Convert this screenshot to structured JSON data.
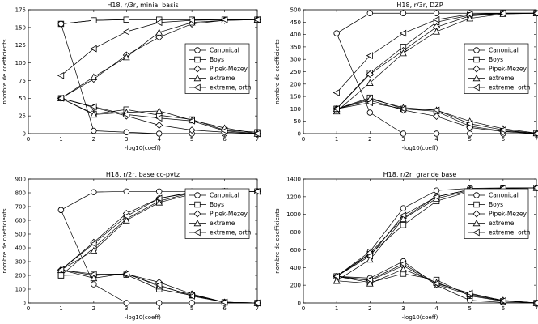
{
  "chart_data": [
    {
      "type": "line",
      "title": "H18, r/3r, minial basis",
      "xlabel": "-log10(coeff)",
      "ylabel": "nombre de coefficients",
      "xlim": [
        0,
        7
      ],
      "ylim": [
        0,
        175
      ],
      "xticks": [
        0,
        1,
        2,
        3,
        4,
        5,
        6,
        7
      ],
      "yticks": [
        0,
        25,
        50,
        75,
        100,
        125,
        150,
        175
      ],
      "x": [
        1,
        2,
        3,
        4,
        5,
        6,
        7
      ],
      "series": [
        {
          "group": "growth",
          "name": "Canonical",
          "marker": "circle",
          "values": [
            155,
            160,
            161,
            161,
            161,
            161,
            161
          ]
        },
        {
          "group": "growth",
          "name": "Boys",
          "marker": "square",
          "values": [
            155,
            160,
            161,
            161,
            161,
            161,
            161
          ]
        },
        {
          "group": "growth",
          "name": "Pipek-Mezey",
          "marker": "diamond",
          "values": [
            50,
            77,
            111,
            136,
            155,
            160,
            161
          ]
        },
        {
          "group": "growth",
          "name": "extreme",
          "marker": "triangle-up",
          "values": [
            50,
            80,
            108,
            143,
            157,
            160,
            161
          ]
        },
        {
          "group": "growth",
          "name": "extreme, orth",
          "marker": "triangle-left",
          "values": [
            82,
            120,
            144,
            157,
            160,
            161,
            161
          ]
        },
        {
          "group": "decay",
          "name": "Canonical",
          "marker": "circle",
          "values": [
            155,
            4,
            2,
            0,
            0,
            0,
            0
          ]
        },
        {
          "group": "decay",
          "name": "Boys",
          "marker": "square",
          "values": [
            50,
            28,
            34,
            26,
            20,
            5,
            2
          ]
        },
        {
          "group": "decay",
          "name": "Pipek-Mezey",
          "marker": "diamond",
          "values": [
            50,
            37,
            25,
            12,
            5,
            2,
            0
          ]
        },
        {
          "group": "decay",
          "name": "extreme",
          "marker": "triangle-up",
          "values": [
            50,
            27,
            30,
            32,
            19,
            8,
            0
          ]
        },
        {
          "group": "decay",
          "name": "extreme, orth",
          "marker": "triangle-left",
          "values": [
            50,
            38,
            27,
            22,
            18,
            4,
            0
          ]
        }
      ],
      "legend": [
        "Canonical",
        "Boys",
        "Pipek-Mezey",
        "extreme",
        "extreme, orth"
      ]
    },
    {
      "type": "line",
      "title": "H18, r/3r, DZP",
      "xlabel": "-log10(coeff)",
      "ylabel": "nombre de coefficients",
      "xlim": [
        0,
        7
      ],
      "ylim": [
        0,
        500
      ],
      "xticks": [
        0,
        1,
        2,
        3,
        4,
        5,
        6,
        7
      ],
      "yticks": [
        0,
        50,
        100,
        150,
        200,
        250,
        300,
        350,
        400,
        450,
        500
      ],
      "x": [
        1,
        2,
        3,
        4,
        5,
        6,
        7
      ],
      "series": [
        {
          "group": "growth",
          "name": "Canonical",
          "marker": "circle",
          "values": [
            405,
            486,
            486,
            486,
            486,
            486,
            486
          ]
        },
        {
          "group": "growth",
          "name": "Boys",
          "marker": "square",
          "values": [
            100,
            245,
            350,
            450,
            478,
            486,
            486
          ]
        },
        {
          "group": "growth",
          "name": "Pipek-Mezey",
          "marker": "diamond",
          "values": [
            100,
            240,
            335,
            430,
            475,
            485,
            486
          ]
        },
        {
          "group": "growth",
          "name": "extreme",
          "marker": "triangle-up",
          "values": [
            90,
            205,
            325,
            412,
            465,
            483,
            486
          ]
        },
        {
          "group": "growth",
          "name": "extreme, orth",
          "marker": "triangle-left",
          "values": [
            165,
            315,
            405,
            460,
            482,
            486,
            486
          ]
        },
        {
          "group": "decay",
          "name": "Canonical",
          "marker": "circle",
          "values": [
            405,
            85,
            0,
            0,
            0,
            0,
            0
          ]
        },
        {
          "group": "decay",
          "name": "Boys",
          "marker": "square",
          "values": [
            100,
            145,
            100,
            90,
            30,
            10,
            2
          ]
        },
        {
          "group": "decay",
          "name": "Pipek-Mezey",
          "marker": "diamond",
          "values": [
            100,
            135,
            95,
            70,
            25,
            8,
            0
          ]
        },
        {
          "group": "decay",
          "name": "extreme",
          "marker": "triangle-up",
          "values": [
            100,
            140,
            105,
            95,
            50,
            20,
            2
          ]
        },
        {
          "group": "decay",
          "name": "extreme, orth",
          "marker": "triangle-left",
          "values": [
            100,
            125,
            100,
            95,
            40,
            15,
            0
          ]
        }
      ],
      "legend": [
        "Canonical",
        "Boys",
        "Pipek-Mezey",
        "extreme",
        "extreme, orth"
      ]
    },
    {
      "type": "line",
      "title": "H18, r/2r, base cc-pvtz",
      "xlabel": "-log10(coeff)",
      "ylabel": "nombre de coefficients",
      "xlim": [
        0,
        7
      ],
      "ylim": [
        0,
        900
      ],
      "xticks": [
        0,
        1,
        2,
        3,
        4,
        5,
        6,
        7
      ],
      "yticks": [
        0,
        100,
        200,
        300,
        400,
        500,
        600,
        700,
        800,
        900
      ],
      "x": [
        1,
        2,
        3,
        4,
        5,
        6,
        7
      ],
      "series": [
        {
          "group": "growth",
          "name": "Canonical",
          "marker": "circle",
          "values": [
            675,
            805,
            810,
            810,
            810,
            810,
            810
          ]
        },
        {
          "group": "growth",
          "name": "Boys",
          "marker": "square",
          "values": [
            200,
            400,
            610,
            740,
            800,
            810,
            810
          ]
        },
        {
          "group": "growth",
          "name": "Pipek-Mezey",
          "marker": "diamond",
          "values": [
            240,
            440,
            650,
            760,
            805,
            810,
            810
          ]
        },
        {
          "group": "growth",
          "name": "extreme",
          "marker": "triangle-up",
          "values": [
            240,
            380,
            600,
            730,
            790,
            808,
            810
          ]
        },
        {
          "group": "growth",
          "name": "extreme, orth",
          "marker": "triangle-left",
          "values": [
            240,
            430,
            630,
            760,
            800,
            810,
            810
          ]
        },
        {
          "group": "decay",
          "name": "Canonical",
          "marker": "circle",
          "values": [
            675,
            135,
            0,
            0,
            0,
            0,
            0
          ]
        },
        {
          "group": "decay",
          "name": "Boys",
          "marker": "square",
          "values": [
            200,
            205,
            205,
            100,
            55,
            5,
            0
          ]
        },
        {
          "group": "decay",
          "name": "Pipek-Mezey",
          "marker": "diamond",
          "values": [
            240,
            200,
            210,
            150,
            65,
            5,
            0
          ]
        },
        {
          "group": "decay",
          "name": "extreme",
          "marker": "triangle-up",
          "values": [
            240,
            180,
            215,
            120,
            60,
            5,
            0
          ]
        },
        {
          "group": "decay",
          "name": "extreme, orth",
          "marker": "triangle-left",
          "values": [
            240,
            210,
            210,
            130,
            50,
            5,
            0
          ]
        }
      ],
      "legend": [
        "Canonical",
        "Boys",
        "Pipek-Mezey",
        "extreme",
        "extreme, orth"
      ]
    },
    {
      "type": "line",
      "title": "H18, r/2r, grande base",
      "xlabel": "-log10(coeff)",
      "ylabel": "nombre de coefficients",
      "xlim": [
        0,
        7
      ],
      "ylim": [
        0,
        1400
      ],
      "xticks": [
        0,
        1,
        2,
        3,
        4,
        5,
        6,
        7
      ],
      "yticks": [
        0,
        200,
        400,
        600,
        800,
        1000,
        1200,
        1400
      ],
      "x": [
        1,
        2,
        3,
        4,
        5,
        6,
        7
      ],
      "series": [
        {
          "group": "growth",
          "name": "Canonical",
          "marker": "circle",
          "values": [
            300,
            580,
            1070,
            1270,
            1295,
            1300,
            1300
          ]
        },
        {
          "group": "growth",
          "name": "Boys",
          "marker": "square",
          "values": [
            300,
            550,
            880,
            1150,
            1260,
            1290,
            1300
          ]
        },
        {
          "group": "growth",
          "name": "Pipek-Mezey",
          "marker": "diamond",
          "values": [
            300,
            560,
            960,
            1200,
            1280,
            1295,
            1300
          ]
        },
        {
          "group": "growth",
          "name": "extreme",
          "marker": "triangle-up",
          "values": [
            250,
            490,
            950,
            1180,
            1270,
            1295,
            1300
          ]
        },
        {
          "group": "growth",
          "name": "extreme, orth",
          "marker": "triangle-left",
          "values": [
            300,
            530,
            990,
            1200,
            1280,
            1297,
            1300
          ]
        },
        {
          "group": "decay",
          "name": "Canonical",
          "marker": "circle",
          "values": [
            300,
            280,
            470,
            200,
            30,
            5,
            0
          ]
        },
        {
          "group": "decay",
          "name": "Boys",
          "marker": "square",
          "values": [
            300,
            230,
            330,
            260,
            80,
            20,
            0
          ]
        },
        {
          "group": "decay",
          "name": "Pipek-Mezey",
          "marker": "diamond",
          "values": [
            300,
            250,
            420,
            210,
            90,
            25,
            0
          ]
        },
        {
          "group": "decay",
          "name": "extreme",
          "marker": "triangle-up",
          "values": [
            250,
            220,
            380,
            230,
            100,
            30,
            0
          ]
        },
        {
          "group": "decay",
          "name": "extreme, orth",
          "marker": "triangle-left",
          "values": [
            300,
            260,
            440,
            220,
            110,
            25,
            0
          ]
        }
      ],
      "legend": [
        "Canonical",
        "Boys",
        "Pipek-Mezey",
        "extreme",
        "extreme, orth"
      ]
    }
  ]
}
